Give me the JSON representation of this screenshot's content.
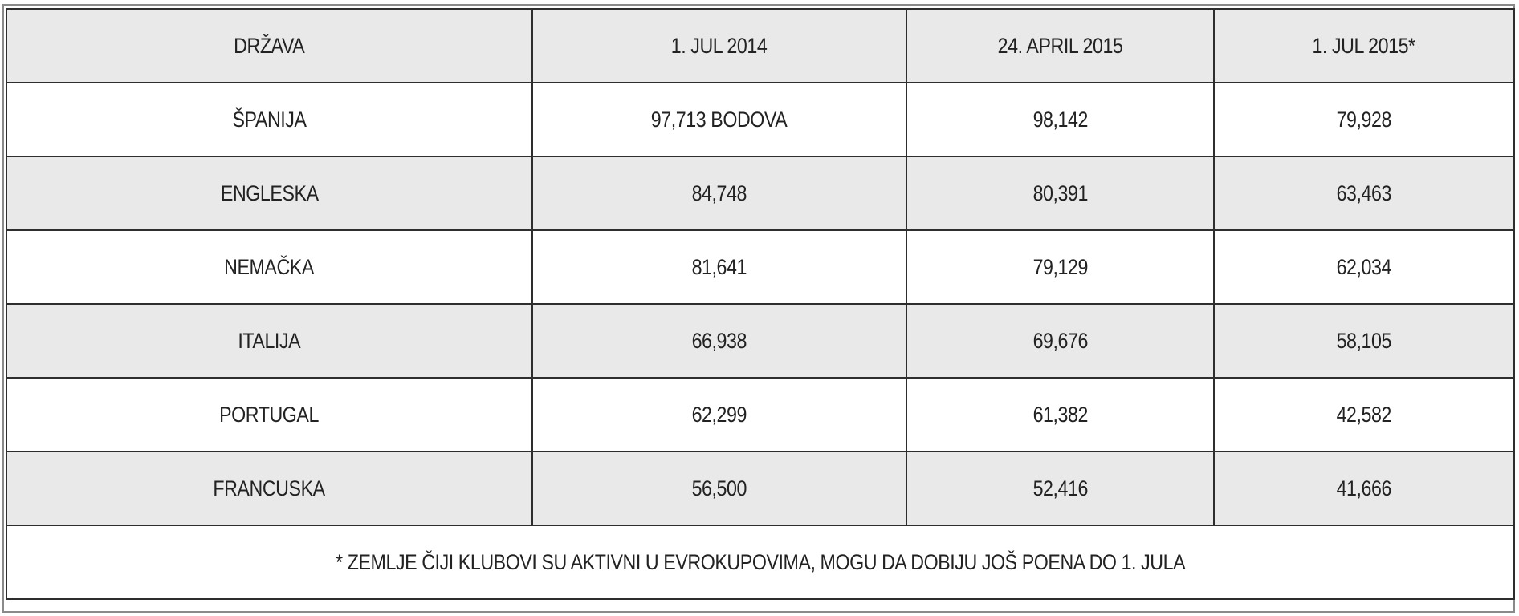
{
  "table": {
    "header": [
      "DRŽAVA",
      "1. JUL 2014",
      "24. APRIL 2015",
      "1. JUL 2015*"
    ],
    "rows": [
      [
        "ŠPANIJA",
        "97,713 BODOVA",
        "98,142",
        "79,928"
      ],
      [
        "ENGLESKA",
        "84,748",
        "80,391",
        "63,463"
      ],
      [
        "NEMAČKA",
        "81,641",
        "79,129",
        "62,034"
      ],
      [
        "ITALIJA",
        "66,938",
        "69,676",
        "58,105"
      ],
      [
        "PORTUGAL",
        "62,299",
        "61,382",
        "42,582"
      ],
      [
        "FRANCUSKA",
        "56,500",
        "52,416",
        "41,666"
      ]
    ],
    "footnote": "* ZEMLJE ČIJI KLUBOVI SU AKTIVNI U EVROKUPOVIMA, MOGU DA DOBIJU JOŠ POENA DO 1. JULA"
  }
}
